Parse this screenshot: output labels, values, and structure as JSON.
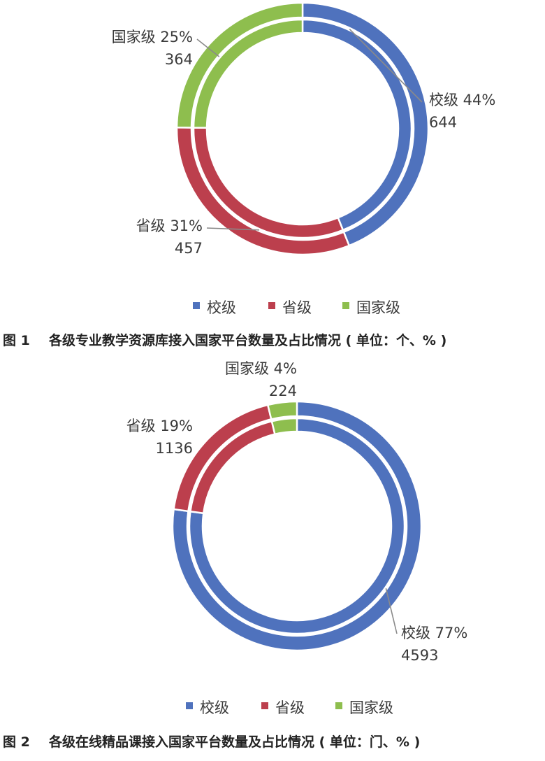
{
  "colors": {
    "school": "#4f72bd",
    "province": "#bc3f4d",
    "national": "#8ebe4e",
    "leader": "#8a8a8a"
  },
  "captions": [
    {
      "number": "图 1",
      "text": "各级专业教学资源库接入国家平台数量及占比情况 ( 单位：个、% )"
    },
    {
      "number": "图 2",
      "text": "各级在线精品课接入国家平台数量及占比情况 ( 单位：门、% )"
    }
  ],
  "chart_data": [
    {
      "type": "pie",
      "style": "double-ring donut",
      "legend_position": "bottom",
      "categories": [
        "校级",
        "省级",
        "国家级"
      ],
      "values": [
        644,
        457,
        364
      ],
      "percentages": [
        "44%",
        "31%",
        "25%"
      ],
      "value_labels": [
        "644",
        "457",
        "364"
      ]
    },
    {
      "type": "pie",
      "style": "double-ring donut",
      "legend_position": "bottom",
      "categories": [
        "校级",
        "省级",
        "国家级"
      ],
      "values": [
        4593,
        1136,
        224
      ],
      "percentages": [
        "77%",
        "19%",
        "4%"
      ],
      "value_labels": [
        "4593",
        "1136",
        "224"
      ]
    }
  ]
}
